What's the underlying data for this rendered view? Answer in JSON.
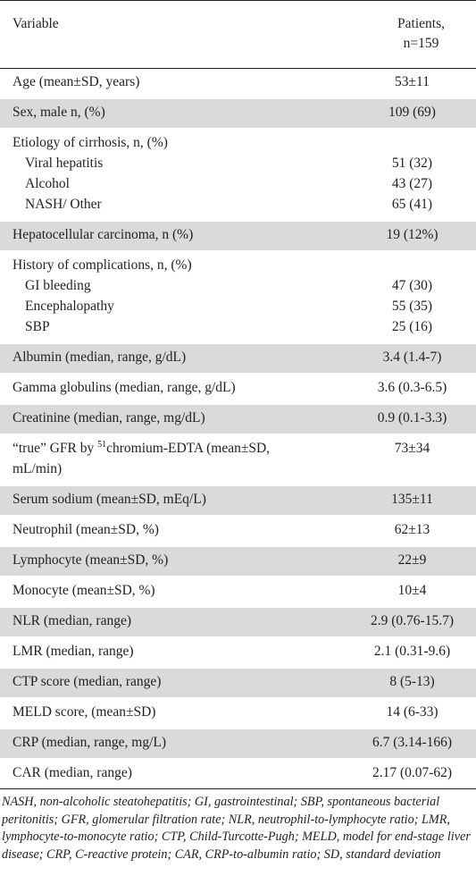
{
  "header": {
    "variable": "Variable",
    "patients_line1": "Patients,",
    "patients_line2": "n=159"
  },
  "rows": [
    {
      "label": "Age (mean±SD, years)",
      "value": "53±11"
    },
    {
      "label": "Sex, male n, (%)",
      "value": "109 (69)"
    },
    {
      "label": "Etiology of cirrhosis, n, (%)",
      "sub": [
        {
          "label": "Viral hepatitis",
          "value": "51 (32)"
        },
        {
          "label": "Alcohol",
          "value": "43 (27)"
        },
        {
          "label": "NASH/ Other",
          "value": "65 (41)"
        }
      ]
    },
    {
      "label": "Hepatocellular carcinoma, n (%)",
      "value": "19 (12%)"
    },
    {
      "label": "History of complications, n, (%)",
      "sub": [
        {
          "label": "GI bleeding",
          "value": "47 (30)"
        },
        {
          "label": "Encephalopathy",
          "value": "55 (35)"
        },
        {
          "label": "SBP",
          "value": "25 (16)"
        }
      ]
    },
    {
      "label": "Albumin (median, range, g/dL)",
      "value": "3.4 (1.4-7)"
    },
    {
      "label": "Gamma globulins (median, range, g/dL)",
      "value": "3.6 (0.3-6.5)"
    },
    {
      "label": "Creatinine (median, range, mg/dL)",
      "value": "0.9 (0.1-3.3)"
    },
    {
      "label_a": "“true” GFR by ",
      "sup": "51",
      "label_b": "chromium-EDTA (mean±SD,",
      "label_c": "mL/min)",
      "value": "73±34"
    },
    {
      "label": "Serum sodium (mean±SD, mEq/L)",
      "value": "135±11"
    },
    {
      "label": "Neutrophil (mean±SD, %)",
      "value": "62±13"
    },
    {
      "label": "Lymphocyte (mean±SD, %)",
      "value": "22±9"
    },
    {
      "label": "Monocyte (mean±SD, %)",
      "value": "10±4"
    },
    {
      "label": "NLR (median, range)",
      "value": "2.9 (0.76-15.7)"
    },
    {
      "label": "LMR (median, range)",
      "value": "2.1 (0.31-9.6)"
    },
    {
      "label": "CTP score (median, range)",
      "value": "8 (5-13)"
    },
    {
      "label": "MELD score, (mean±SD)",
      "value": "14 (6-33)"
    },
    {
      "label": "CRP (median, range, mg/L)",
      "value": "6.7 (3.14-166)"
    },
    {
      "label": "CAR (median, range)",
      "value": "2.17 (0.07-62)"
    }
  ],
  "footnote": "NASH, non-alcoholic steatohepatitis; GI, gastrointestinal; SBP, spontaneous bacterial peritonitis; GFR, glomerular filtration rate; NLR, neutrophil-to-lymphocyte ratio; LMR, lymphocyte-to-monocyte ratio; CTP, Child-Turcotte-Pugh; MELD, model for end-stage liver disease; CRP, C-reactive protein; CAR, CRP-to-albumin ratio; SD, standard deviation"
}
